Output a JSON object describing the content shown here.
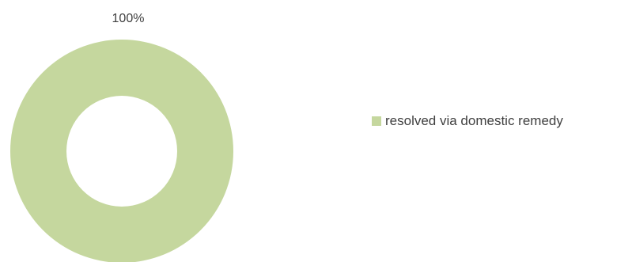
{
  "chart_data": {
    "type": "pie",
    "variant": "doughnut",
    "categories": [
      "resolved via domestic remedy"
    ],
    "values": [
      100
    ],
    "data_labels": [
      "100%"
    ],
    "colors": [
      "#c5d79e"
    ],
    "legend_position": "right"
  },
  "legend": {
    "items": [
      {
        "label": "resolved via domestic remedy",
        "color": "#c5d79e"
      }
    ]
  }
}
